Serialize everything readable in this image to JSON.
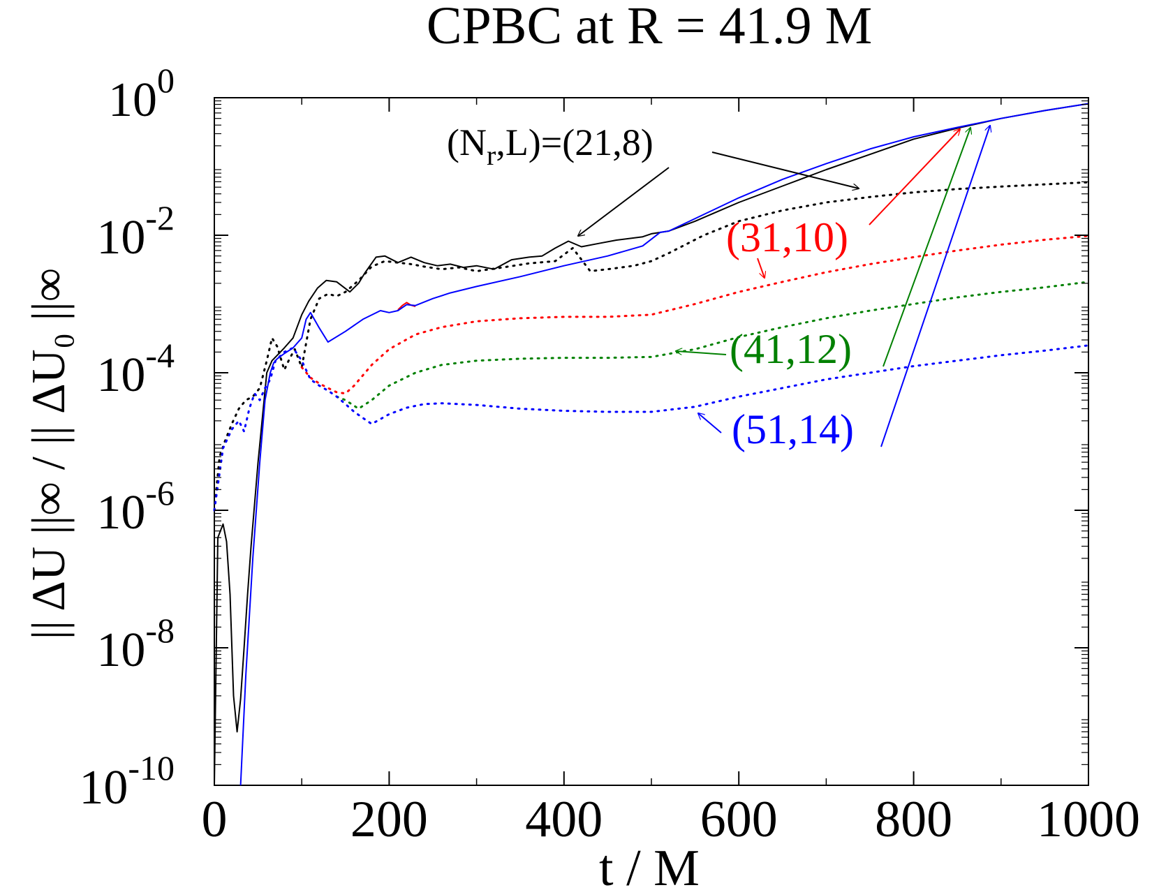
{
  "chart_data": {
    "type": "line",
    "title": "CPBC at R = 41.9 M",
    "xlabel": "t / M",
    "ylabel": "|| ΔU ||∞ / || ΔU₀ ||∞",
    "xlim": [
      0,
      1000
    ],
    "ylim": [
      1e-10,
      1
    ],
    "yscale": "log",
    "x_ticks": [
      "0",
      "200",
      "400",
      "600",
      "800",
      "1000"
    ],
    "y_ticks": [
      {
        "base": "10",
        "exp": "0"
      },
      {
        "base": "10",
        "exp": "-2"
      },
      {
        "base": "10",
        "exp": "-4"
      },
      {
        "base": "10",
        "exp": "-6"
      },
      {
        "base": "10",
        "exp": "-8"
      },
      {
        "base": "10",
        "exp": "-10"
      }
    ],
    "series": [
      {
        "name": "(N_r,L)=(21,8)",
        "style": "solid",
        "color": "#000000",
        "x": [
          0,
          4,
          10,
          14,
          18,
          22,
          26,
          30,
          34,
          38,
          42,
          50,
          60,
          66,
          72,
          80,
          90,
          100,
          108,
          118,
          128,
          140,
          155,
          165,
          172,
          185,
          195,
          210,
          225,
          240,
          255,
          270,
          285,
          300,
          320,
          340,
          360,
          375,
          390,
          405,
          420,
          440,
          460,
          490,
          500,
          520,
          550,
          600,
          650,
          700,
          750,
          800,
          850,
          900,
          950,
          1000
        ],
        "y": [
          1e-10,
          4e-07,
          6.3e-07,
          3.5e-07,
          6e-08,
          2e-09,
          6e-10,
          1.8e-09,
          1e-08,
          6e-08,
          3e-07,
          5e-06,
          0.0001,
          0.00015,
          0.00018,
          0.00023,
          0.00032,
          0.0007,
          0.0011,
          0.0017,
          0.0022,
          0.0021,
          0.0015,
          0.002,
          0.0028,
          0.0048,
          0.005,
          0.004,
          0.0048,
          0.004,
          0.0036,
          0.0038,
          0.0034,
          0.0036,
          0.0032,
          0.0044,
          0.0048,
          0.005,
          0.0065,
          0.0082,
          0.0068,
          0.0076,
          0.0085,
          0.0095,
          0.0105,
          0.0115,
          0.016,
          0.03,
          0.052,
          0.09,
          0.15,
          0.25,
          0.36,
          0.5,
          0.65,
          0.82
        ]
      },
      {
        "name": "(N_r,L)=(21,8)",
        "style": "dotted",
        "color": "#000000",
        "x": [
          0,
          6,
          12,
          20,
          28,
          36,
          44,
          52,
          60,
          66,
          72,
          80,
          86,
          92,
          100,
          110,
          120,
          130,
          140,
          150,
          165,
          180,
          195,
          210,
          225,
          240,
          260,
          280,
          300,
          330,
          360,
          390,
          410,
          430,
          450,
          480,
          500,
          520,
          560,
          600,
          650,
          700,
          750,
          800,
          850,
          900,
          950,
          1000
        ],
        "y": [
          1e-06,
          6e-06,
          1e-05,
          1.8e-05,
          3e-05,
          4e-05,
          4.5e-05,
          6e-05,
          0.00015,
          0.00032,
          0.00024,
          0.00011,
          0.00016,
          0.00022,
          0.00012,
          0.0006,
          0.0012,
          0.0014,
          0.0013,
          0.0015,
          0.0022,
          0.0035,
          0.0042,
          0.004,
          0.0038,
          0.0035,
          0.0032,
          0.0034,
          0.003,
          0.0034,
          0.0039,
          0.0042,
          0.0065,
          0.003,
          0.0032,
          0.0036,
          0.0042,
          0.0055,
          0.01,
          0.016,
          0.023,
          0.03,
          0.036,
          0.042,
          0.047,
          0.051,
          0.055,
          0.059
        ]
      },
      {
        "name": "(31,10)",
        "style": "solid",
        "color": "#ff0000",
        "x": [
          210,
          215,
          220,
          225,
          230
        ],
        "y": [
          0.00082,
          0.00095,
          0.00105,
          0.00096,
          0.00092
        ]
      },
      {
        "name": "(31,10)",
        "style": "dotted",
        "color": "#ff0000",
        "x": [
          100,
          110,
          120,
          130,
          140,
          150,
          160,
          180,
          200,
          230,
          260,
          300,
          350,
          400,
          450,
          500,
          550,
          600,
          650,
          700,
          750,
          800,
          850,
          900,
          950,
          1000
        ],
        "y": [
          0.00012,
          8.5e-05,
          7e-05,
          6e-05,
          5.2e-05,
          5e-05,
          6.5e-05,
          0.00013,
          0.00022,
          0.00036,
          0.00046,
          0.00056,
          0.00062,
          0.00065,
          0.00065,
          0.0007,
          0.001,
          0.0015,
          0.0021,
          0.0029,
          0.0038,
          0.0048,
          0.006,
          0.0073,
          0.0086,
          0.0098
        ]
      },
      {
        "name": "(41,12)",
        "style": "dotted",
        "color": "#008000",
        "x": [
          140,
          150,
          165,
          180,
          200,
          230,
          260,
          300,
          350,
          400,
          450,
          500,
          550,
          600,
          650,
          700,
          750,
          800,
          850,
          900,
          950,
          1000
        ],
        "y": [
          4.5e-05,
          4e-05,
          3e-05,
          4e-05,
          6.5e-05,
          0.0001,
          0.00013,
          0.00015,
          0.00016,
          0.000165,
          0.000165,
          0.00017,
          0.00022,
          0.00033,
          0.00046,
          0.00062,
          0.0008,
          0.001,
          0.00125,
          0.0015,
          0.00175,
          0.0021
        ]
      },
      {
        "name": "(51,14)",
        "style": "dotted",
        "color": "#0000ff",
        "x": [
          0,
          10,
          20,
          28,
          34,
          40,
          46,
          52,
          58,
          64,
          70,
          80,
          90,
          100,
          110,
          120,
          130,
          140,
          150,
          160,
          170,
          180,
          200,
          220,
          240,
          260,
          280,
          300,
          350,
          400,
          450,
          500,
          550,
          600,
          650,
          700,
          750,
          800,
          850,
          900,
          950,
          1000
        ],
        "y": [
          1e-06,
          8e-06,
          1.5e-05,
          2e-05,
          1.4e-05,
          3e-05,
          5e-05,
          4e-05,
          6e-05,
          8e-05,
          0.00015,
          0.0002,
          0.00023,
          0.00015,
          8e-05,
          6.5e-05,
          5.5e-05,
          4.5e-05,
          3.5e-05,
          2.7e-05,
          2.2e-05,
          1.8e-05,
          2.5e-05,
          3.1e-05,
          3.5e-05,
          3.6e-05,
          3.5e-05,
          3.4e-05,
          3e-05,
          2.8e-05,
          2.7e-05,
          2.7e-05,
          3.2e-05,
          4.5e-05,
          6e-05,
          8e-05,
          0.0001,
          0.000125,
          0.00015,
          0.00018,
          0.00021,
          0.00025
        ]
      },
      {
        "name": "(51,14)",
        "style": "solid",
        "color": "#0000ff",
        "x": [
          30,
          36,
          44,
          52,
          58,
          64,
          68,
          72,
          80,
          90,
          100,
          105,
          110,
          120,
          130,
          150,
          170,
          190,
          200,
          210,
          220,
          230,
          250,
          270,
          300,
          350,
          400,
          450,
          490,
          510,
          520,
          550,
          600,
          650,
          700,
          750,
          800,
          850,
          900,
          950,
          1000
        ],
        "y": [
          1e-10,
          4e-09,
          2e-07,
          5e-06,
          4e-05,
          0.0001,
          0.00014,
          0.00016,
          0.00019,
          0.00023,
          0.00032,
          0.0006,
          0.00075,
          0.00045,
          0.00028,
          0.0004,
          0.0006,
          0.0008,
          0.00075,
          0.0008,
          0.00098,
          0.00095,
          0.0012,
          0.00145,
          0.0018,
          0.0025,
          0.0036,
          0.005,
          0.007,
          0.011,
          0.0115,
          0.0175,
          0.035,
          0.065,
          0.11,
          0.18,
          0.27,
          0.37,
          0.5,
          0.65,
          0.82
        ]
      }
    ],
    "annotations": [
      {
        "label_parts": [
          "(N",
          "r",
          ",L)=(21,8)"
        ],
        "color": "#000000"
      },
      {
        "text": "(31,10)",
        "color": "#ff0000"
      },
      {
        "text": "(41,12)",
        "color": "#008000"
      },
      {
        "text": "(51,14)",
        "color": "#0000ff"
      }
    ],
    "grid": false,
    "legend": "none"
  }
}
